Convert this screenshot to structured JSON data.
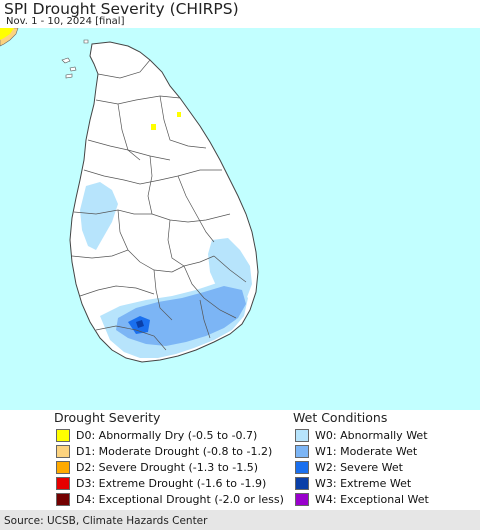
{
  "title": "SPI Drought Severity (CHIRPS)",
  "subtitle": "Nov. 1 - 10, 2024 [final]",
  "colors": {
    "ocean": "#c2ffff",
    "land": "#ffffff",
    "boundary": "#555555",
    "W0": "#b7e4fc",
    "W1": "#7cb5f5",
    "W2": "#1a6fee",
    "W3": "#0a3fa8",
    "W4": "#9900cc",
    "D0": "#ffff00",
    "D1": "#fcd37f",
    "D2": "#ffaa00",
    "D3": "#e60000",
    "D4": "#730000"
  },
  "legend": {
    "drought_heading": "Drought Severity",
    "wet_heading": "Wet Conditions",
    "drought_items": [
      {
        "code": "D0",
        "label": "D0: Abnormally Dry (-0.5 to -0.7)",
        "color": "#ffff00"
      },
      {
        "code": "D1",
        "label": "D1: Moderate Drought (-0.8 to -1.2)",
        "color": "#fcd37f"
      },
      {
        "code": "D2",
        "label": "D2: Severe Drought (-1.3 to -1.5)",
        "color": "#ffaa00"
      },
      {
        "code": "D3",
        "label": "D3: Extreme Drought (-1.6 to -1.9)",
        "color": "#e60000"
      },
      {
        "code": "D4",
        "label": "D4: Exceptional Drought (-2.0 or less)",
        "color": "#730000"
      }
    ],
    "wet_items": [
      {
        "code": "W0",
        "label": "W0: Abnormally Wet",
        "color": "#b7e4fc"
      },
      {
        "code": "W1",
        "label": "W1: Moderate Wet",
        "color": "#7cb5f5"
      },
      {
        "code": "W2",
        "label": "W2: Severe Wet",
        "color": "#1a6fee"
      },
      {
        "code": "W3",
        "label": "W3: Extreme Wet",
        "color": "#0a3fa8"
      },
      {
        "code": "W4",
        "label": "W4: Exceptional Wet",
        "color": "#9900cc"
      }
    ]
  },
  "source": "Source: UCSB, Climate Hazards Center"
}
